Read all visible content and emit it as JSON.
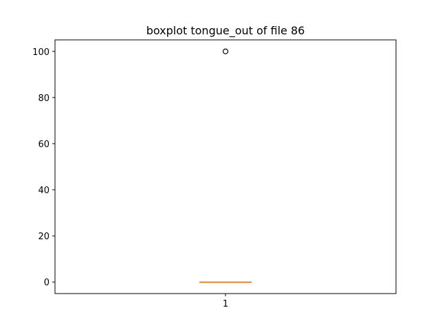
{
  "chart_data": {
    "type": "boxplot",
    "title": "boxplot tongue_out of file 86",
    "xlabel": "",
    "ylabel": "",
    "categories": [
      "1"
    ],
    "ylim": [
      -5,
      105
    ],
    "y_ticks": [
      0,
      20,
      40,
      60,
      80,
      100
    ],
    "grid": false,
    "boxes": [
      {
        "category": "1",
        "whislo": 0,
        "q1": 0,
        "median": 0,
        "q3": 0,
        "whishi": 0,
        "fliers": [
          100
        ]
      }
    ],
    "colors": {
      "median": "#ff7f0e",
      "box": "#000000",
      "flier": "#000000"
    }
  }
}
